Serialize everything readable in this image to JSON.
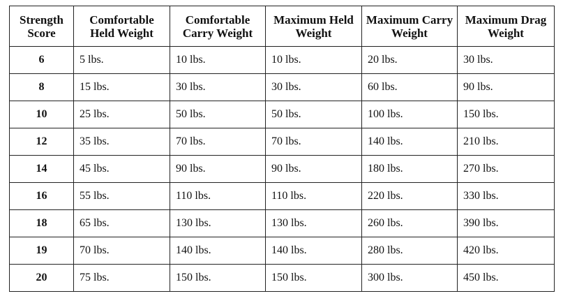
{
  "table": {
    "headers": [
      "Strength Score",
      "Comfortable Held Weight",
      "Comfortable Carry Weight",
      "Maximum Held Weight",
      "Maximum Carry Weight",
      "Maximum Drag Weight"
    ],
    "rows": [
      [
        "6",
        "5 lbs.",
        "10 lbs.",
        "10 lbs.",
        "20 lbs.",
        "30 lbs."
      ],
      [
        "8",
        "15 lbs.",
        "30 lbs.",
        "30 lbs.",
        "60 lbs.",
        "90 lbs."
      ],
      [
        "10",
        "25 lbs.",
        "50 lbs.",
        "50 lbs.",
        "100 lbs.",
        "150 lbs."
      ],
      [
        "12",
        "35 lbs.",
        "70 lbs.",
        "70 lbs.",
        "140 lbs.",
        "210 lbs."
      ],
      [
        "14",
        "45 lbs.",
        "90 lbs.",
        "90 lbs.",
        "180 lbs.",
        "270 lbs."
      ],
      [
        "16",
        "55 lbs.",
        "110 lbs.",
        "110 lbs.",
        "220 lbs.",
        "330 lbs."
      ],
      [
        "18",
        "65 lbs.",
        "130 lbs.",
        "130 lbs.",
        "260 lbs.",
        "390 lbs."
      ],
      [
        "19",
        "70 lbs.",
        "140 lbs.",
        "140 lbs.",
        "280 lbs.",
        "420 lbs."
      ],
      [
        "20",
        "75 lbs.",
        "150 lbs.",
        "150 lbs.",
        "300 lbs.",
        "450 lbs."
      ]
    ]
  }
}
